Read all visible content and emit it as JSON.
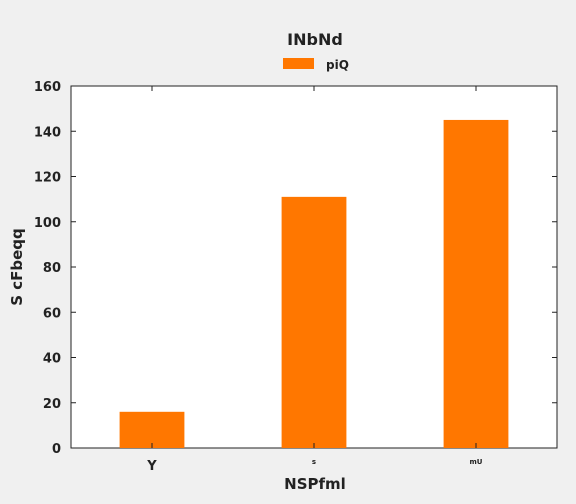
{
  "chart_data": {
    "type": "bar",
    "title": "INbNd",
    "xlabel": "NSPfml",
    "ylabel": "S cFbeqq",
    "categories": [
      "Y",
      "s",
      "mU"
    ],
    "series": [
      {
        "name": "piQ",
        "values": [
          16,
          111,
          145
        ],
        "color": "#ff7700"
      }
    ],
    "ylim": [
      0,
      160
    ],
    "yticks": [
      0,
      20,
      40,
      60,
      80,
      100,
      120,
      140,
      160
    ],
    "legend_position": "top-center",
    "grid": false
  }
}
